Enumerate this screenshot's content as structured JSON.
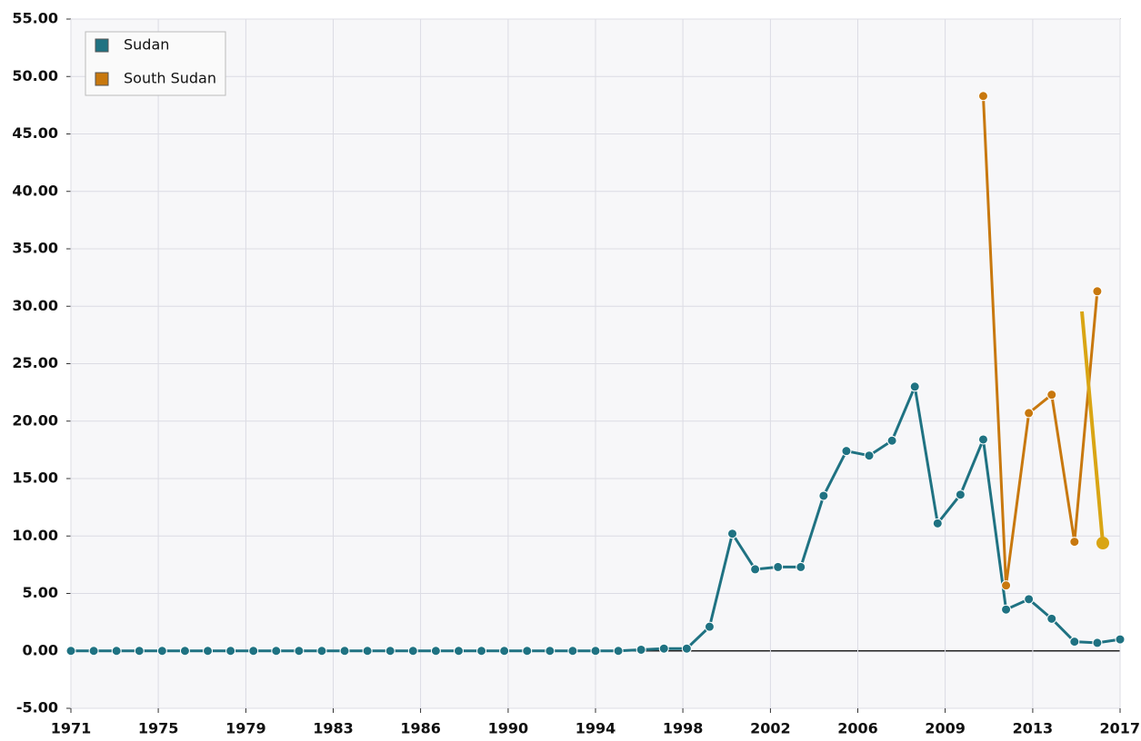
{
  "chart_data": {
    "type": "line",
    "x": [
      1971,
      1972,
      1973,
      1974,
      1975,
      1976,
      1977,
      1978,
      1979,
      1980,
      1981,
      1982,
      1983,
      1984,
      1985,
      1986,
      1987,
      1988,
      1989,
      1990,
      1991,
      1992,
      1993,
      1994,
      1995,
      1996,
      1997,
      1998,
      1999,
      2000,
      2001,
      2002,
      2003,
      2004,
      2005,
      2006,
      2007,
      2008,
      2009,
      2010,
      2011,
      2012,
      2013,
      2014,
      2015,
      2016,
      2017
    ],
    "series": [
      {
        "name": "Sudan",
        "color": "#1f7282",
        "values": [
          0,
          0,
          0,
          0,
          0,
          0,
          0,
          0,
          0,
          0,
          0,
          0,
          0,
          0,
          0,
          0,
          0,
          0,
          0,
          0,
          0,
          0,
          0,
          0,
          0,
          0.1,
          0.2,
          0.2,
          2.1,
          10.2,
          7.1,
          7.3,
          7.3,
          13.5,
          17.4,
          17.0,
          18.3,
          23.0,
          11.1,
          13.6,
          18.4,
          3.6,
          4.5,
          2.8,
          0.8,
          0.7,
          1.0
        ]
      },
      {
        "name": "South Sudan",
        "color": "#c8780e",
        "values": [
          null,
          null,
          null,
          null,
          null,
          null,
          null,
          null,
          null,
          null,
          null,
          null,
          null,
          null,
          null,
          null,
          null,
          null,
          null,
          null,
          null,
          null,
          null,
          null,
          null,
          null,
          null,
          null,
          null,
          null,
          null,
          null,
          null,
          null,
          null,
          null,
          null,
          null,
          null,
          null,
          48.3,
          5.7,
          20.7,
          22.3,
          9.5,
          31.3,
          null
        ]
      }
    ],
    "xlim": [
      1971,
      2017
    ],
    "xticks": [
      1971,
      {
        "value": 1974.83,
        "label": "1975"
      },
      {
        "value": 1978.67,
        "label": "1979"
      },
      {
        "value": 1982.5,
        "label": "1983"
      },
      {
        "value": 1986.33,
        "label": "1986"
      },
      {
        "value": 1990.17,
        "label": "1990"
      },
      1994,
      {
        "value": 1997.83,
        "label": "1998"
      },
      {
        "value": 2001.67,
        "label": "2002"
      },
      {
        "value": 2005.5,
        "label": "2006"
      },
      {
        "value": 2009.33,
        "label": "2009"
      },
      {
        "value": 2013.17,
        "label": "2013"
      },
      2017
    ],
    "ylim": [
      -5,
      55
    ],
    "yticks": [
      {
        "value": -5,
        "label": "-5.00"
      },
      {
        "value": 0,
        "label": "0.00"
      },
      {
        "value": 5,
        "label": "5.00"
      },
      {
        "value": 10,
        "label": "10.00"
      },
      {
        "value": 15,
        "label": "15.00"
      },
      {
        "value": 20,
        "label": "20.00"
      },
      {
        "value": 25,
        "label": "25.00"
      },
      {
        "value": 30,
        "label": "30.00"
      },
      {
        "value": 35,
        "label": "35.00"
      },
      {
        "value": 40,
        "label": "40.00"
      },
      {
        "value": 45,
        "label": "45.00"
      },
      {
        "value": 50,
        "label": "50.00"
      },
      {
        "value": 55,
        "label": "55.00"
      }
    ],
    "grid": true,
    "legend": "top-left"
  }
}
